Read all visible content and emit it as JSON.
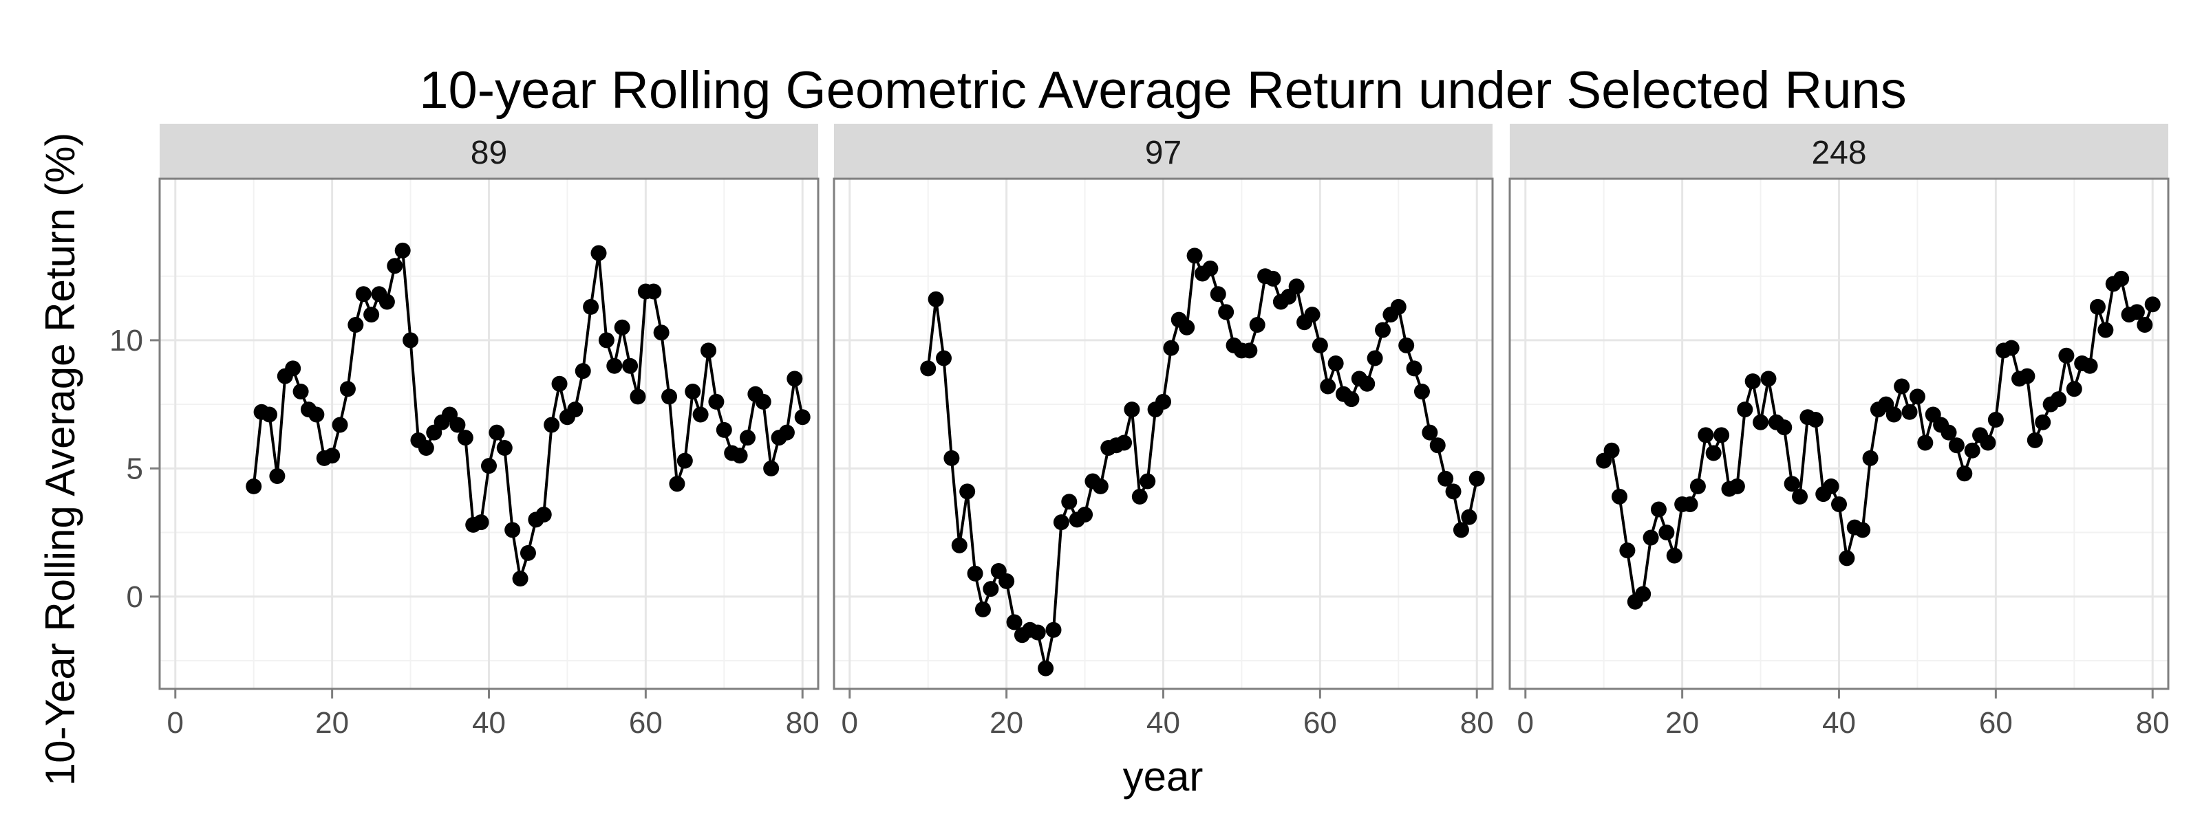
{
  "chart_data": {
    "type": "line",
    "title": "10-year Rolling Geometric Average Return under Selected Runs",
    "xlabel": "year",
    "ylabel": "10-Year Rolling Average Return (%)",
    "xlim": [
      -2,
      82
    ],
    "ylim": [
      -3.6,
      16.3
    ],
    "xticks": [
      0,
      20,
      40,
      60,
      80
    ],
    "yticks": [
      0,
      5,
      10
    ],
    "x_tick_labels": [
      "0",
      "20",
      "40",
      "60",
      "80"
    ],
    "y_tick_labels": [
      "0",
      "5",
      "10"
    ],
    "grid": true,
    "markers": "filled-circle",
    "colors": {
      "line": "#000000",
      "strip": "#d9d9d9",
      "grid_major": "#e6e6e6",
      "grid_minor": "#f2f2f2",
      "frame": "#7f7f7f"
    },
    "x": [
      10,
      11,
      12,
      13,
      14,
      15,
      16,
      17,
      18,
      19,
      20,
      21,
      22,
      23,
      24,
      25,
      26,
      27,
      28,
      29,
      30,
      31,
      32,
      33,
      34,
      35,
      36,
      37,
      38,
      39,
      40,
      41,
      42,
      43,
      44,
      45,
      46,
      47,
      48,
      49,
      50,
      51,
      52,
      53,
      54,
      55,
      56,
      57,
      58,
      59,
      60,
      61,
      62,
      63,
      64,
      65,
      66,
      67,
      68,
      69,
      70,
      71,
      72,
      73,
      74,
      75,
      76,
      77,
      78,
      79,
      80
    ],
    "series": [
      {
        "name": "89",
        "values": [
          4.3,
          7.2,
          7.1,
          4.7,
          8.6,
          8.9,
          8.0,
          7.3,
          7.1,
          5.4,
          5.5,
          6.7,
          8.1,
          10.6,
          11.8,
          11.0,
          11.8,
          11.5,
          12.9,
          13.5,
          10.0,
          6.1,
          5.8,
          6.4,
          6.8,
          7.1,
          6.7,
          6.2,
          2.8,
          2.9,
          5.1,
          6.4,
          5.8,
          2.6,
          0.7,
          1.7,
          3.0,
          3.2,
          6.7,
          8.3,
          7.0,
          7.3,
          8.8,
          11.3,
          13.4,
          10.0,
          9.0,
          10.5,
          9.0,
          7.8,
          11.9,
          11.9,
          10.3,
          7.8,
          4.4,
          5.3,
          8.0,
          7.1,
          9.6,
          7.6,
          6.5,
          5.6,
          5.5,
          6.2,
          7.9,
          7.6,
          5.0,
          6.2,
          6.4,
          8.5,
          7.0
        ]
      },
      {
        "name": "97",
        "values": [
          8.9,
          11.6,
          9.3,
          5.4,
          2.0,
          4.1,
          0.9,
          -0.5,
          0.3,
          1.0,
          0.6,
          -1.0,
          -1.5,
          -1.3,
          -1.4,
          -2.8,
          -1.3,
          2.9,
          3.7,
          3.0,
          3.2,
          4.5,
          4.3,
          5.8,
          5.9,
          6.0,
          7.3,
          3.9,
          4.5,
          7.3,
          7.6,
          9.7,
          10.8,
          10.5,
          13.3,
          12.6,
          12.8,
          11.8,
          11.1,
          9.8,
          9.6,
          9.6,
          10.6,
          12.5,
          12.4,
          11.5,
          11.7,
          12.1,
          10.7,
          11.0,
          9.8,
          8.2,
          9.1,
          7.9,
          7.7,
          8.5,
          8.3,
          9.3,
          10.4,
          11.0,
          11.3,
          9.8,
          8.9,
          8.0,
          6.4,
          5.9,
          4.6,
          4.1,
          2.6,
          3.1,
          4.6
        ]
      },
      {
        "name": "248",
        "values": [
          5.3,
          5.7,
          3.9,
          1.8,
          -0.2,
          0.1,
          2.3,
          3.4,
          2.5,
          1.6,
          3.6,
          3.6,
          4.3,
          6.3,
          5.6,
          6.3,
          4.2,
          4.3,
          7.3,
          8.4,
          6.8,
          8.5,
          6.8,
          6.6,
          4.4,
          3.9,
          7.0,
          6.9,
          4.0,
          4.3,
          3.6,
          1.5,
          2.7,
          2.6,
          5.4,
          7.3,
          7.5,
          7.1,
          8.2,
          7.2,
          7.8,
          6.0,
          7.1,
          6.7,
          6.4,
          5.9,
          4.8,
          5.7,
          6.3,
          6.0,
          6.9,
          9.6,
          9.7,
          8.5,
          8.6,
          6.1,
          6.8,
          7.5,
          7.7,
          9.4,
          8.1,
          9.1,
          9.0,
          11.3,
          10.4,
          12.2,
          12.4,
          11.0,
          11.1,
          10.6,
          11.4
        ]
      }
    ]
  }
}
